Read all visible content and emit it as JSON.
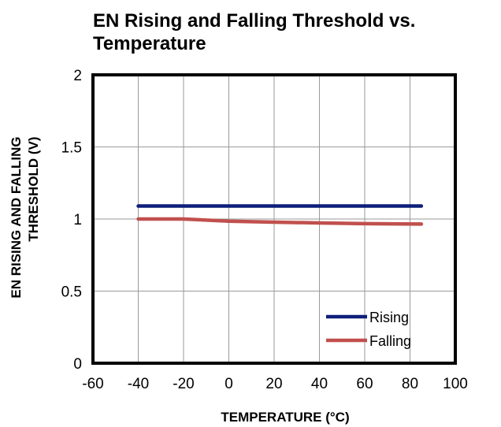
{
  "chart_data": {
    "type": "line",
    "title": "EN Rising and Falling Threshold vs. Temperature",
    "xlabel": "TEMPERATURE  (°C)",
    "ylabel_lines": [
      "EN RISING  AND FALLING",
      "THRESHOLD  (V)"
    ],
    "xlim": [
      -60,
      100
    ],
    "ylim": [
      0,
      2
    ],
    "x_ticks": [
      "-60",
      "-40",
      "-20",
      "0",
      "20",
      "40",
      "60",
      "80",
      "100"
    ],
    "y_ticks": [
      "0",
      "0.5",
      "1",
      "1.5",
      "2"
    ],
    "grid": true,
    "legend_position": "bottom-right",
    "series": [
      {
        "name": "Rising",
        "color": "#0d1f7a",
        "x": [
          -40,
          -20,
          0,
          20,
          40,
          60,
          85
        ],
        "y": [
          1.09,
          1.09,
          1.09,
          1.09,
          1.09,
          1.09,
          1.09
        ]
      },
      {
        "name": "Falling",
        "color": "#c0504d",
        "x": [
          -40,
          -20,
          0,
          20,
          40,
          60,
          85
        ],
        "y": [
          1.0,
          1.0,
          0.985,
          0.978,
          0.973,
          0.968,
          0.965
        ]
      }
    ]
  }
}
